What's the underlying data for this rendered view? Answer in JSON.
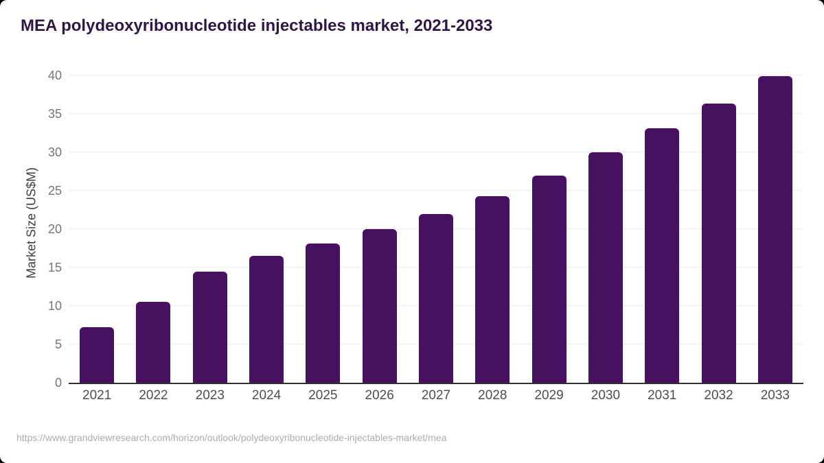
{
  "header": {
    "title": "MEA polydeoxyribonucleotide injectables market, 2021-2033"
  },
  "footer": {
    "url": "https://www.grandviewresearch.com/horizon/outlook/polydeoxyribonucleotide-injectables-market/mea"
  },
  "colors": {
    "bar": "#481060",
    "title_text": "#2c1845",
    "gridline": "#ebebeb",
    "axis_line": "#2f2f2f",
    "y_tick_label": "#757575",
    "x_tick_label": "#4d4d4d",
    "source_text": "#ababab",
    "card_background": "#ffffff",
    "page_background": "#000000"
  },
  "chart_data": {
    "type": "bar",
    "title": "MEA polydeoxyribonucleotide injectables market, 2021-2033",
    "categories": [
      "2021",
      "2022",
      "2023",
      "2024",
      "2025",
      "2026",
      "2027",
      "2028",
      "2029",
      "2030",
      "2031",
      "2032",
      "2033"
    ],
    "values": [
      7.2,
      10.5,
      14.5,
      16.5,
      18.1,
      20.0,
      22.0,
      24.3,
      27.0,
      30.0,
      33.1,
      36.3,
      39.9
    ],
    "xlabel": "",
    "ylabel": "Market Size (US$M)",
    "ylim": [
      0,
      40
    ],
    "ytick_step": 5,
    "yticks": [
      0,
      5,
      10,
      15,
      20,
      25,
      30,
      35,
      40
    ],
    "grid": true,
    "legend": false,
    "bar_corner_radius_px": 6
  }
}
